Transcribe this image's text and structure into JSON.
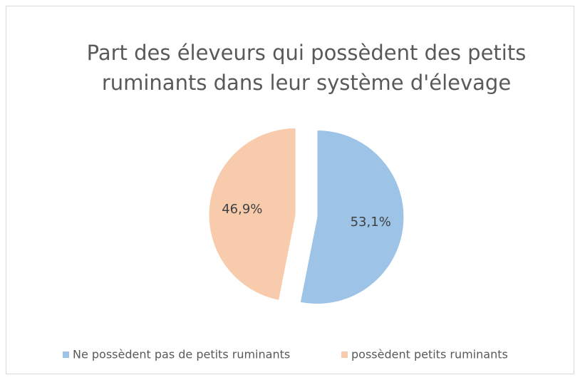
{
  "chart_data": {
    "type": "pie",
    "title": [
      "Part des éleveurs qui possèdent des petits",
      "ruminants dans leur système d'élevage"
    ],
    "categories": [
      "Ne possèdent pas de petits ruminants",
      "possèdent petits ruminants"
    ],
    "values": [
      53.1,
      46.9
    ],
    "value_labels": [
      "53,1%",
      "46,9%"
    ],
    "colors": [
      "#9dc3e6",
      "#f8cbad"
    ],
    "legend": "bottom"
  }
}
